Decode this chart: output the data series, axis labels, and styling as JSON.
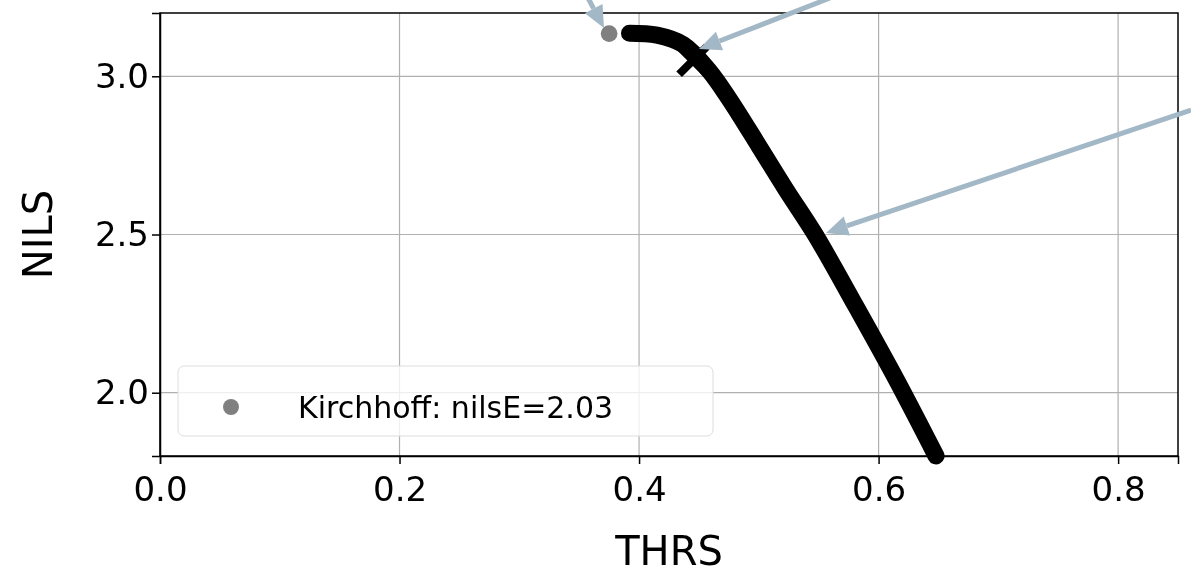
{
  "chart_data": {
    "type": "line",
    "xlabel": "THRS",
    "ylabel": "NILS",
    "xlim": [
      0,
      0.85
    ],
    "ylim": [
      1.8,
      3.2
    ],
    "xticks": [
      {
        "value": 0,
        "label": "0.0"
      },
      0.2,
      0.4,
      0.6,
      0.8
    ],
    "yticks": [
      {
        "value": 2,
        "label": "2.0"
      },
      2.5,
      {
        "value": 3,
        "label": "3.0"
      }
    ],
    "grid": true,
    "legend": "bottom left",
    "series": [
      {
        "color": "#000000",
        "x": [
          0.392,
          0.415,
          0.437,
          0.458,
          0.475,
          0.5,
          0.523,
          0.547,
          0.58,
          0.615,
          0.648
        ],
        "values": [
          3.136,
          3.13,
          3.1,
          3.02,
          2.93,
          2.78,
          2.64,
          2.5,
          2.28,
          2.04,
          1.8
        ]
      },
      {
        "type": "scatter",
        "marker": "cross",
        "color": "#000000",
        "x": [
          0.445
        ],
        "values": [
          3.05
        ]
      },
      {
        "type": "scatter",
        "marker": "circle",
        "name": "Kirchhoff: nilsE=2.03",
        "color": "#808080",
        "x": [
          0.375
        ],
        "values": [
          3.135
        ]
      }
    ]
  }
}
